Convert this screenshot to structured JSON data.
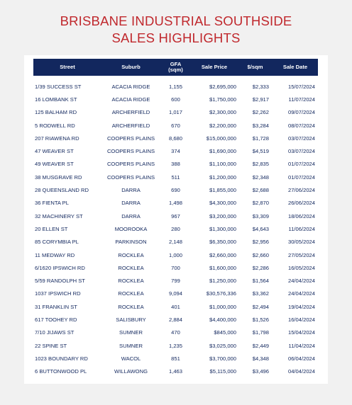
{
  "title": {
    "line1": "BRISBANE INDUSTRIAL SOUTHSIDE",
    "line2": "SALES HIGHLIGHTS"
  },
  "table": {
    "headers": {
      "street": "Street",
      "suburb": "Suburb",
      "gfa_line1": "GFA",
      "gfa_line2": "(sqm)",
      "price": "Sale Price",
      "sqm": "$/sqm",
      "date": "Sale Date"
    },
    "rows": [
      {
        "street": "1/39 SUCCESS ST",
        "suburb": "ACACIA RIDGE",
        "gfa": "1,155",
        "price": "$2,695,000",
        "sqm": "$2,333",
        "date": "15/07/2024"
      },
      {
        "street": "16 LOMBANK ST",
        "suburb": "ACACIA RIDGE",
        "gfa": "600",
        "price": "$1,750,000",
        "sqm": "$2,917",
        "date": "11/07/2024"
      },
      {
        "street": "125 BALHAM RD",
        "suburb": "ARCHERFIELD",
        "gfa": "1,017",
        "price": "$2,300,000",
        "sqm": "$2,262",
        "date": "09/07/2024"
      },
      {
        "street": "5 RODWELL RD",
        "suburb": "ARCHERFIELD",
        "gfa": "670",
        "price": "$2,200,000",
        "sqm": "$3,284",
        "date": "08/07/2024"
      },
      {
        "street": "207 RIAWENA RD",
        "suburb": "COOPERS PLAINS",
        "gfa": "8,680",
        "price": "$15,000,000",
        "sqm": "$1,728",
        "date": "03/07/2024"
      },
      {
        "street": "47 WEAVER ST",
        "suburb": "COOPERS PLAINS",
        "gfa": "374",
        "price": "$1,690,000",
        "sqm": "$4,519",
        "date": "03/07/2024"
      },
      {
        "street": "49 WEAVER ST",
        "suburb": "COOPERS PLAINS",
        "gfa": "388",
        "price": "$1,100,000",
        "sqm": "$2,835",
        "date": "01/07/2024"
      },
      {
        "street": "38 MUSGRAVE RD",
        "suburb": "COOPERS PLAINS",
        "gfa": "511",
        "price": "$1,200,000",
        "sqm": "$2,348",
        "date": "01/07/2024"
      },
      {
        "street": "28 QUEENSLAND RD",
        "suburb": "DARRA",
        "gfa": "690",
        "price": "$1,855,000",
        "sqm": "$2,688",
        "date": "27/06/2024"
      },
      {
        "street": "36 FIENTA PL",
        "suburb": "DARRA",
        "gfa": "1,498",
        "price": "$4,300,000",
        "sqm": "$2,870",
        "date": "26/06/2024"
      },
      {
        "street": "32 MACHINERY ST",
        "suburb": "DARRA",
        "gfa": "967",
        "price": "$3,200,000",
        "sqm": "$3,309",
        "date": "18/06/2024"
      },
      {
        "street": "20 ELLEN ST",
        "suburb": "MOOROOKA",
        "gfa": "280",
        "price": "$1,300,000",
        "sqm": "$4,643",
        "date": "11/06/2024"
      },
      {
        "street": "85 CORYMBIA PL",
        "suburb": "PARKINSON",
        "gfa": "2,148",
        "price": "$6,350,000",
        "sqm": "$2,956",
        "date": "30/05/2024"
      },
      {
        "street": "11 MEDWAY RD",
        "suburb": "ROCKLEA",
        "gfa": "1,000",
        "price": "$2,660,000",
        "sqm": "$2,660",
        "date": "27/05/2024"
      },
      {
        "street": "6/1620 IPSWICH RD",
        "suburb": "ROCKLEA",
        "gfa": "700",
        "price": "$1,600,000",
        "sqm": "$2,286",
        "date": "16/05/2024"
      },
      {
        "street": "5/59 RANDOLPH ST",
        "suburb": "ROCKLEA",
        "gfa": "799",
        "price": "$1,250,000",
        "sqm": "$1,564",
        "date": "24/04/2024"
      },
      {
        "street": "1037 IPSWICH RD",
        "suburb": "ROCKLEA",
        "gfa": "9,094",
        "price": "$30,576,336",
        "sqm": "$3,362",
        "date": "24/04/2024"
      },
      {
        "street": "31 FRANKLIN ST",
        "suburb": "ROCKLEA",
        "gfa": "401",
        "price": "$1,000,000",
        "sqm": "$2,494",
        "date": "19/04/2024"
      },
      {
        "street": "617 TOOHEY RD",
        "suburb": "SALISBURY",
        "gfa": "2,884",
        "price": "$4,400,000",
        "sqm": "$1,526",
        "date": "16/04/2024"
      },
      {
        "street": "7/10 JIJAWS ST",
        "suburb": "SUMNER",
        "gfa": "470",
        "price": "$845,000",
        "sqm": "$1,798",
        "date": "15/04/2024"
      },
      {
        "street": "22 SPINE ST",
        "suburb": "SUMNER",
        "gfa": "1,235",
        "price": "$3,025,000",
        "sqm": "$2,449",
        "date": "11/04/2024"
      },
      {
        "street": "1023 BOUNDARY RD",
        "suburb": "WACOL",
        "gfa": "851",
        "price": "$3,700,000",
        "sqm": "$4,348",
        "date": "06/04/2024"
      },
      {
        "street": "6 BUTTONWOOD PL",
        "suburb": "WILLAWONG",
        "gfa": "1,463",
        "price": "$5,115,000",
        "sqm": "$3,496",
        "date": "04/04/2024"
      }
    ]
  }
}
